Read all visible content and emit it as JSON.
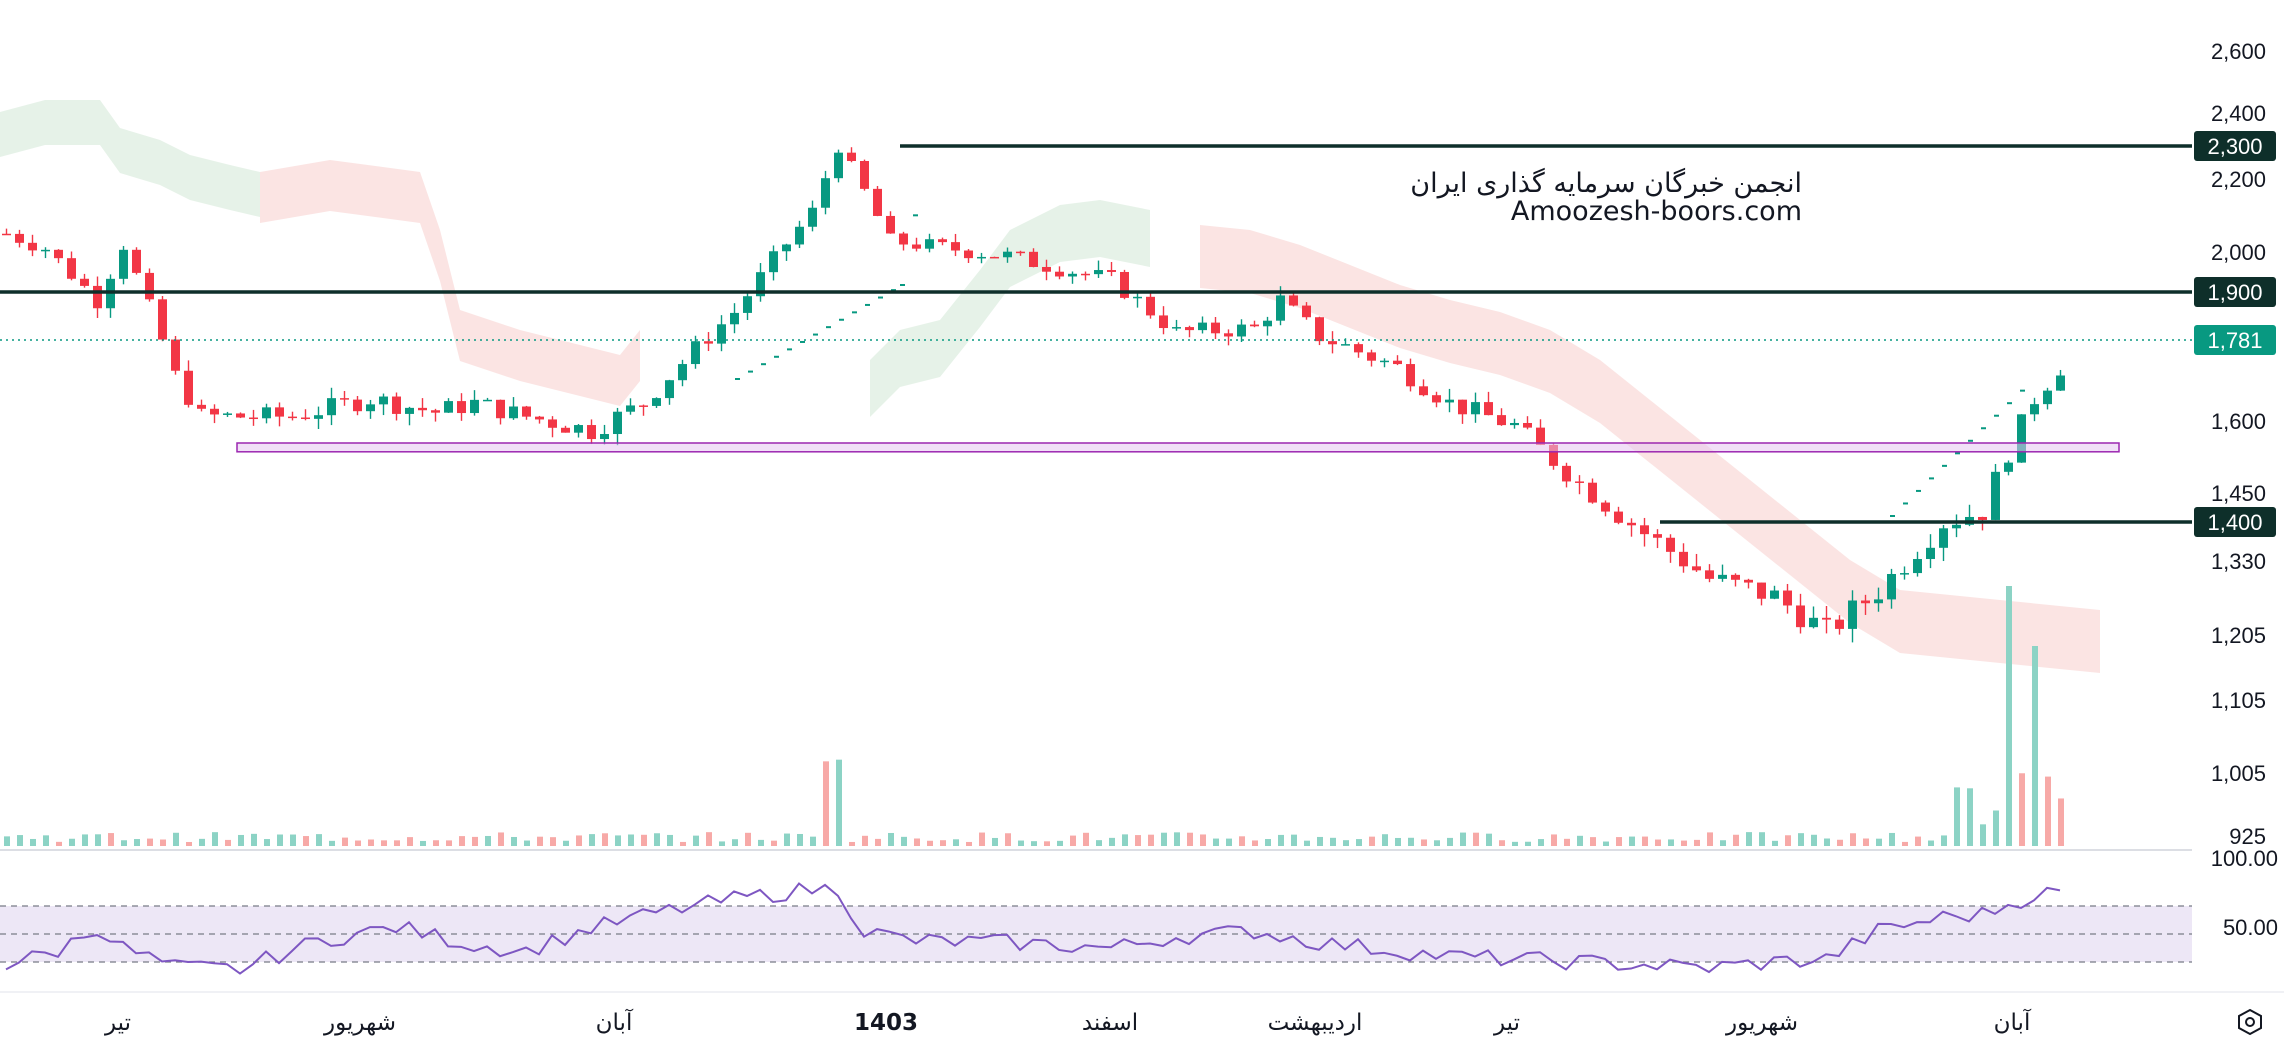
{
  "watermark": {
    "line1": "انجمن خبرگان سرمایه گذاری ایران",
    "line2": "Amoozesh-boors.com"
  },
  "colors": {
    "up": "#089981",
    "down": "#f23645",
    "up_vol": "#8cd3c5",
    "down_vol": "#f7a9a7",
    "level_line": "#0e2f2a",
    "current_price": "#089981",
    "cloud_bull": "#e3f1e6",
    "cloud_bear": "#fbe1e0",
    "zone_fill": "#e5c7f1",
    "zone_stroke": "#9c27b0",
    "rsi_line": "#7e57c2",
    "rsi_band": "#ede7f6",
    "psar": "#089981"
  },
  "chart_data": {
    "type": "candlestick",
    "title": "",
    "y_ticks": [
      "2,600",
      "2,400",
      "2,200",
      "2,000",
      "1,600",
      "1,450",
      "1,330",
      "1,205",
      "1,105",
      "1,005",
      "925"
    ],
    "x_ticks": [
      "تیر",
      "شهریور",
      "آبان",
      "1403",
      "اسفند",
      "اردیبهشت",
      "تیر",
      "شهریور",
      "آبان"
    ],
    "levels": [
      {
        "label": "2,300",
        "value": 2300
      },
      {
        "label": "1,900",
        "value": 1900
      },
      {
        "label": "1,400",
        "value": 1400
      }
    ],
    "current_price": {
      "label": "1,781",
      "value": 1781
    },
    "support_zone": [
      1540,
      1575
    ],
    "price_path": [
      [
        0,
        2050
      ],
      [
        3,
        2010
      ],
      [
        7,
        1880
      ],
      [
        9,
        2020
      ],
      [
        13,
        1700
      ],
      [
        15,
        1610
      ],
      [
        22,
        1610
      ],
      [
        28,
        1650
      ],
      [
        33,
        1620
      ],
      [
        36,
        1640
      ],
      [
        40,
        1610
      ],
      [
        45,
        1580
      ],
      [
        49,
        1640
      ],
      [
        56,
        1850
      ],
      [
        62,
        2110
      ],
      [
        64,
        2300
      ],
      [
        68,
        2030
      ],
      [
        77,
        1990
      ],
      [
        85,
        1930
      ],
      [
        90,
        1800
      ],
      [
        96,
        1810
      ],
      [
        98,
        1880
      ],
      [
        101,
        1790
      ],
      [
        107,
        1720
      ],
      [
        111,
        1640
      ],
      [
        116,
        1590
      ],
      [
        121,
        1470
      ],
      [
        126,
        1380
      ],
      [
        131,
        1300
      ],
      [
        136,
        1270
      ],
      [
        140,
        1210
      ],
      [
        144,
        1280
      ],
      [
        149,
        1400
      ],
      [
        152,
        1420
      ],
      [
        156,
        1650
      ],
      [
        158,
        1720
      ]
    ],
    "rsi": {
      "levels": [
        70,
        50,
        30
      ],
      "tick_labels": [
        "100.00",
        "50.00"
      ],
      "path": [
        [
          0,
          28
        ],
        [
          4,
          38
        ],
        [
          7,
          55
        ],
        [
          9,
          40
        ],
        [
          13,
          26
        ],
        [
          18,
          25
        ],
        [
          24,
          45
        ],
        [
          30,
          55
        ],
        [
          36,
          42
        ],
        [
          40,
          38
        ],
        [
          45,
          54
        ],
        [
          50,
          65
        ],
        [
          56,
          75
        ],
        [
          62,
          82
        ],
        [
          64,
          82
        ],
        [
          66,
          52
        ],
        [
          70,
          45
        ],
        [
          77,
          44
        ],
        [
          85,
          40
        ],
        [
          90,
          48
        ],
        [
          96,
          52
        ],
        [
          101,
          44
        ],
        [
          107,
          38
        ],
        [
          111,
          34
        ],
        [
          116,
          32
        ],
        [
          121,
          30
        ],
        [
          126,
          28
        ],
        [
          131,
          26
        ],
        [
          136,
          30
        ],
        [
          140,
          32
        ],
        [
          144,
          52
        ],
        [
          149,
          62
        ],
        [
          152,
          64
        ],
        [
          156,
          78
        ],
        [
          158,
          80
        ]
      ]
    }
  }
}
